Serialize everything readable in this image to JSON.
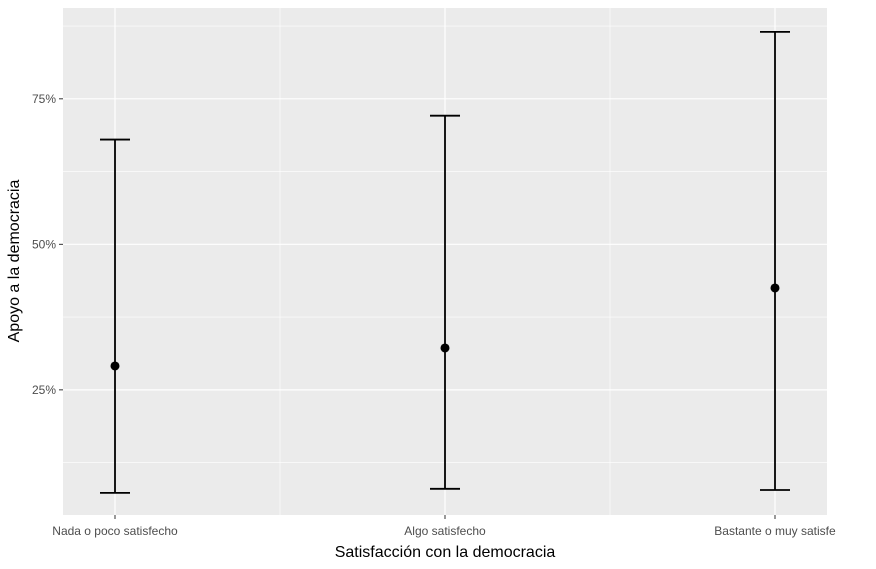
{
  "chart_data": {
    "type": "errorbar",
    "x_label": "Satisfacción con la democracia",
    "y_label": "Apoyo a la democracia",
    "categories": [
      "Nada o poco satisfecho",
      "Algo satisfecho",
      "Bastante o muy satisfe"
    ],
    "values": [
      29.1,
      32.2,
      42.5
    ],
    "lower": [
      7.3,
      8.0,
      7.8
    ],
    "upper": [
      68.0,
      72.1,
      86.5
    ],
    "color": "#000000",
    "ylim": [
      3.5,
      90.6
    ],
    "yticks": [
      {
        "value": 25,
        "label": "25%"
      },
      {
        "value": 50,
        "label": "50%"
      },
      {
        "value": 75,
        "label": "75%"
      }
    ],
    "minor_grid_y": [
      12.5,
      37.5,
      62.5,
      87.5
    ],
    "grid": true
  }
}
